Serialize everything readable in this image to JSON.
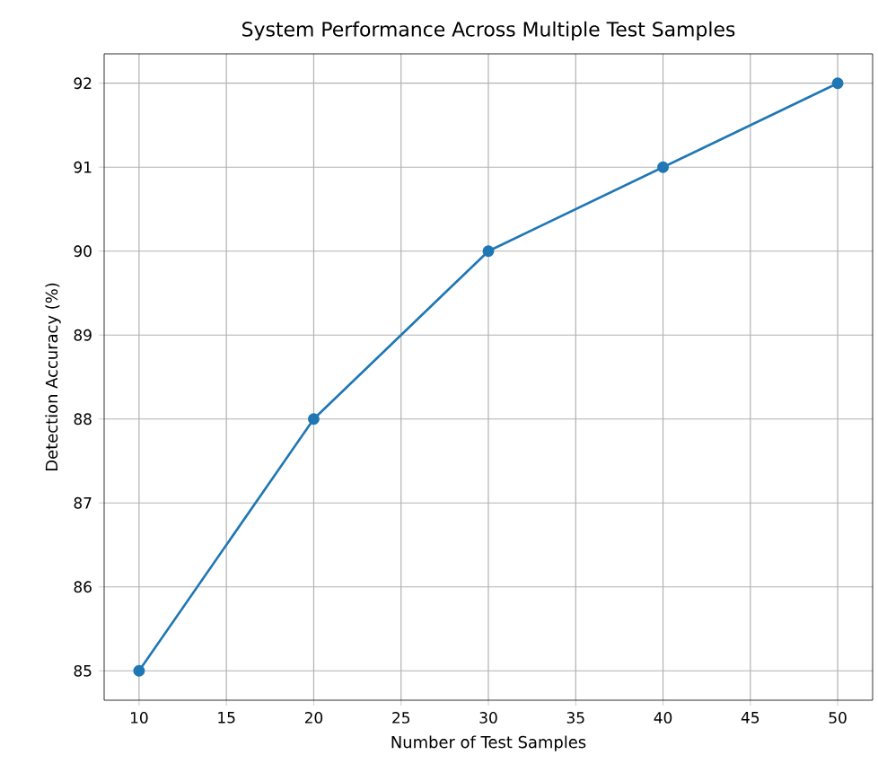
{
  "chart_data": {
    "type": "line",
    "title": "System Performance Across Multiple Test Samples",
    "xlabel": "Number of Test Samples",
    "ylabel": "Detection Accuracy (%)",
    "x": [
      10,
      20,
      30,
      40,
      50
    ],
    "series": [
      {
        "color": "#1f77b4",
        "values": [
          85,
          88,
          90,
          91,
          92
        ]
      }
    ],
    "xlim": [
      8,
      52
    ],
    "ylim": [
      84.65,
      92.35
    ],
    "xticks": [
      10,
      15,
      20,
      25,
      30,
      35,
      40,
      45,
      50
    ],
    "yticks": [
      85,
      86,
      87,
      88,
      89,
      90,
      91,
      92
    ],
    "grid": true,
    "marker": "circle",
    "line_style": "solid"
  }
}
